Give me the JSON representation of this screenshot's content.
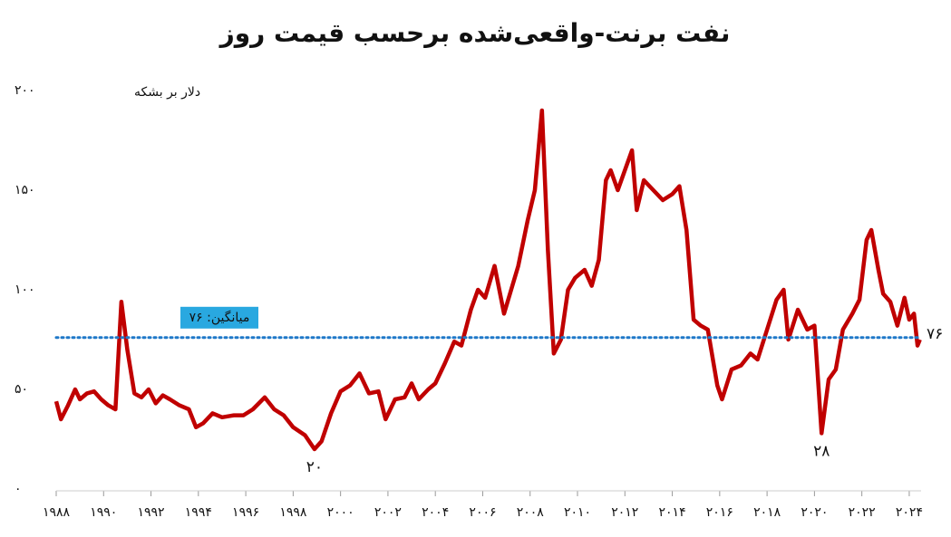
{
  "chart_data": {
    "type": "line",
    "title": "نفت برنت-واقعی‌شده برحسب قیمت روز",
    "y_label": "دلار بر بشکه",
    "x": [
      1988.0,
      1988.2,
      1988.5,
      1988.8,
      1989.0,
      1989.3,
      1989.6,
      1989.9,
      1990.2,
      1990.5,
      1990.75,
      1991.0,
      1991.3,
      1991.6,
      1991.9,
      1992.2,
      1992.5,
      1992.8,
      1993.2,
      1993.6,
      1993.9,
      1994.2,
      1994.6,
      1995.0,
      1995.5,
      1995.9,
      1996.3,
      1996.8,
      1997.2,
      1997.6,
      1998.0,
      1998.5,
      1998.9,
      1999.2,
      1999.6,
      2000.0,
      2000.4,
      2000.8,
      2001.2,
      2001.6,
      2001.9,
      2002.3,
      2002.7,
      2003.0,
      2003.3,
      2003.7,
      2004.0,
      2004.4,
      2004.8,
      2005.1,
      2005.5,
      2005.8,
      2006.1,
      2006.5,
      2006.9,
      2007.2,
      2007.5,
      2007.9,
      2008.2,
      2008.5,
      2008.75,
      2009.0,
      2009.3,
      2009.6,
      2009.9,
      2010.3,
      2010.6,
      2010.9,
      2011.2,
      2011.4,
      2011.7,
      2012.0,
      2012.3,
      2012.5,
      2012.8,
      2013.2,
      2013.6,
      2014.0,
      2014.3,
      2014.6,
      2014.9,
      2015.2,
      2015.5,
      2015.9,
      2016.1,
      2016.5,
      2016.9,
      2017.3,
      2017.6,
      2018.0,
      2018.4,
      2018.7,
      2018.9,
      2019.3,
      2019.7,
      2020.0,
      2020.3,
      2020.6,
      2020.9,
      2021.2,
      2021.6,
      2021.9,
      2022.2,
      2022.4,
      2022.7,
      2022.9,
      2023.2,
      2023.5,
      2023.8,
      2024.0,
      2024.2,
      2024.35,
      2024.45
    ],
    "series": [
      {
        "name": "برنت",
        "color": "#c00000",
        "values": [
          44,
          35,
          42,
          50,
          45,
          48,
          49,
          45,
          42,
          40,
          94,
          70,
          48,
          46,
          50,
          43,
          47,
          45,
          42,
          40,
          31,
          33,
          38,
          36,
          37,
          37,
          40,
          46,
          40,
          37,
          31,
          27,
          20,
          24,
          38,
          49,
          52,
          58,
          48,
          49,
          35,
          45,
          46,
          53,
          45,
          50,
          53,
          63,
          74,
          72,
          90,
          100,
          96,
          112,
          88,
          100,
          112,
          135,
          150,
          190,
          120,
          68,
          75,
          100,
          106,
          110,
          102,
          115,
          155,
          160,
          150,
          160,
          170,
          140,
          155,
          150,
          145,
          148,
          152,
          130,
          85,
          82,
          80,
          52,
          45,
          60,
          62,
          68,
          65,
          80,
          95,
          100,
          75,
          90,
          80,
          82,
          28,
          55,
          60,
          80,
          88,
          95,
          125,
          130,
          110,
          98,
          94,
          82,
          96,
          85,
          88,
          72,
          75
        ]
      }
    ],
    "xlim": [
      1988,
      2024.5
    ],
    "xticks": [
      {
        "value": 1988,
        "label": "۱۹۸۸"
      },
      {
        "value": 1990,
        "label": "۱۹۹۰"
      },
      {
        "value": 1992,
        "label": "۱۹۹۲"
      },
      {
        "value": 1994,
        "label": "۱۹۹۴"
      },
      {
        "value": 1996,
        "label": "۱۹۹۶"
      },
      {
        "value": 1998,
        "label": "۱۹۹۸"
      },
      {
        "value": 2000,
        "label": "۲۰۰۰"
      },
      {
        "value": 2002,
        "label": "۲۰۰۲"
      },
      {
        "value": 2004,
        "label": "۲۰۰۴"
      },
      {
        "value": 2006,
        "label": "۲۰۰۶"
      },
      {
        "value": 2008,
        "label": "۲۰۰۸"
      },
      {
        "value": 2010,
        "label": "۲۰۱۰"
      },
      {
        "value": 2012,
        "label": "۲۰۱۲"
      },
      {
        "value": 2014,
        "label": "۲۰۱۴"
      },
      {
        "value": 2016,
        "label": "۲۰۱۶"
      },
      {
        "value": 2018,
        "label": "۲۰۱۸"
      },
      {
        "value": 2020,
        "label": "۲۰۲۰"
      },
      {
        "value": 2022,
        "label": "۲۰۲۲"
      },
      {
        "value": 2024,
        "label": "۲۰۲۴"
      }
    ],
    "ylim": [
      0,
      200
    ],
    "yticks": [
      {
        "value": 0,
        "label": "۰"
      },
      {
        "value": 50,
        "label": "۵۰"
      },
      {
        "value": 100,
        "label": "۱۰۰"
      },
      {
        "value": 150,
        "label": "۱۵۰"
      },
      {
        "value": 200,
        "label": "۲۰۰"
      }
    ],
    "average": {
      "value": 76,
      "label": "میانگین: ۷۶",
      "end_label": "۷۶",
      "color": "#1f78c8",
      "label_color": "#29a8e0"
    },
    "annotations": [
      {
        "x": 1998.9,
        "y": 20,
        "label": "۲۰"
      },
      {
        "x": 2020.3,
        "y": 28,
        "label": "۲۸"
      }
    ]
  }
}
